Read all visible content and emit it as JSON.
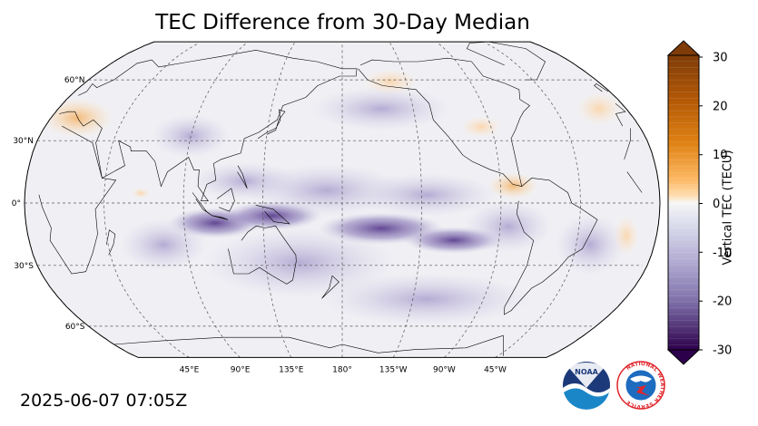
{
  "title": "TEC Difference from 30-Day Median",
  "timestamp": "2025-06-07 07:05Z",
  "map": {
    "projection": "Robinson",
    "central_longitude": "180°",
    "lat_labels": [
      "60°N",
      "30°N",
      "0°",
      "30°S",
      "60°S"
    ],
    "lon_labels": [
      "45°E",
      "90°E",
      "135°E",
      "180°",
      "135°W",
      "90°W",
      "45°W"
    ],
    "gridlines": "dashed",
    "ocean_color": "#f0f0f4"
  },
  "colorbar": {
    "label": "Vertical TEC (TECU)",
    "ticks": [
      "30",
      "20",
      "10",
      "0",
      "-10",
      "-20",
      "-30"
    ],
    "range": [
      -30,
      30
    ],
    "extend": "both",
    "colormap": "PuOr_r"
  },
  "logos": {
    "noaa_text": "NOAA",
    "nws_text": "NATIONAL WEATHER SERVICE"
  }
}
